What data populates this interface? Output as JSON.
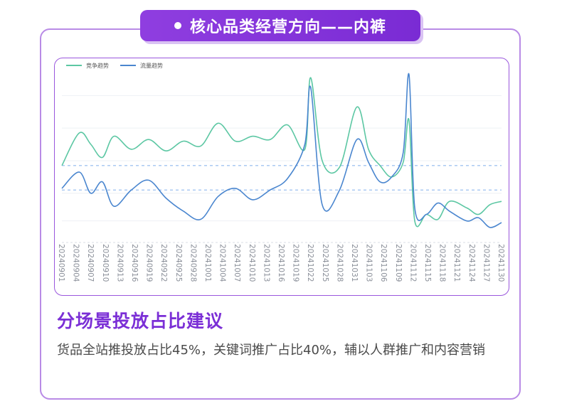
{
  "header": {
    "title": "核心品类经营方向——内裤"
  },
  "chart_data": {
    "type": "line",
    "legend": [
      "竞争趋势",
      "流量趋势"
    ],
    "legend_position": "top-left",
    "colors": {
      "competition": "#5cc7a3",
      "traffic": "#4a86cf",
      "refline": "#8fb8ee"
    },
    "x_tick_labels": [
      "20240901",
      "20240904",
      "20240907",
      "20240910",
      "20240913",
      "20240916",
      "20240919",
      "20240922",
      "20240925",
      "20240928",
      "20241001",
      "20241004",
      "20241007",
      "20241010",
      "20241013",
      "20241016",
      "20241019",
      "20241022",
      "20241025",
      "20241028",
      "20241031",
      "20241103",
      "20241106",
      "20241109",
      "20241112",
      "20241115",
      "20241118",
      "20241121",
      "20241124",
      "20241127",
      "20241130"
    ],
    "ylim": [
      0,
      100
    ],
    "series": [
      {
        "name": "竞争趋势",
        "points": [
          [
            0,
            42
          ],
          [
            3,
            62
          ],
          [
            5,
            55
          ],
          [
            7,
            47
          ],
          [
            9,
            60
          ],
          [
            12,
            52
          ],
          [
            15,
            58
          ],
          [
            18,
            51
          ],
          [
            21,
            57
          ],
          [
            24,
            54
          ],
          [
            27,
            68
          ],
          [
            30,
            57
          ],
          [
            33,
            60
          ],
          [
            36,
            58
          ],
          [
            39,
            67
          ],
          [
            42,
            52
          ],
          [
            43,
            96
          ],
          [
            45,
            45
          ],
          [
            48,
            41
          ],
          [
            51,
            78
          ],
          [
            53,
            52
          ],
          [
            55,
            42
          ],
          [
            57,
            35
          ],
          [
            59,
            44
          ],
          [
            60,
            70
          ],
          [
            61,
            8
          ],
          [
            63,
            12
          ],
          [
            65,
            9
          ],
          [
            67,
            20
          ],
          [
            70,
            16
          ],
          [
            72,
            12
          ],
          [
            74,
            18
          ],
          [
            76,
            20
          ]
        ]
      },
      {
        "name": "流量趋势",
        "points": [
          [
            0,
            28
          ],
          [
            3,
            38
          ],
          [
            5,
            25
          ],
          [
            7,
            32
          ],
          [
            9,
            17
          ],
          [
            12,
            27
          ],
          [
            15,
            33
          ],
          [
            18,
            22
          ],
          [
            21,
            14
          ],
          [
            24,
            9
          ],
          [
            27,
            23
          ],
          [
            30,
            28
          ],
          [
            33,
            21
          ],
          [
            36,
            27
          ],
          [
            39,
            34
          ],
          [
            42,
            55
          ],
          [
            43,
            90
          ],
          [
            45,
            18
          ],
          [
            48,
            27
          ],
          [
            51,
            58
          ],
          [
            53,
            44
          ],
          [
            55,
            32
          ],
          [
            57,
            35
          ],
          [
            59,
            50
          ],
          [
            60,
            98
          ],
          [
            61,
            16
          ],
          [
            63,
            12
          ],
          [
            65,
            19
          ],
          [
            67,
            14
          ],
          [
            70,
            8
          ],
          [
            72,
            10
          ],
          [
            74,
            4
          ],
          [
            76,
            7
          ]
        ]
      }
    ],
    "reference_lines": [
      42,
      27
    ]
  },
  "advice": {
    "heading": "分场景投放占比建议",
    "text": "货品全站推投放占比45%，关键词推广占比40%，辅以人群推广和内容营销"
  }
}
